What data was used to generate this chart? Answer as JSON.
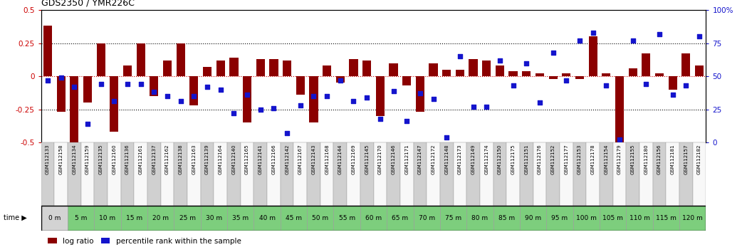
{
  "title": "GDS2350 / YMR226C",
  "samples": [
    "GSM112133",
    "GSM112158",
    "GSM112134",
    "GSM112159",
    "GSM112135",
    "GSM112160",
    "GSM112136",
    "GSM112161",
    "GSM112137",
    "GSM112162",
    "GSM112138",
    "GSM112163",
    "GSM112139",
    "GSM112164",
    "GSM112140",
    "GSM112165",
    "GSM112141",
    "GSM112166",
    "GSM112142",
    "GSM112167",
    "GSM112143",
    "GSM112168",
    "GSM112144",
    "GSM112169",
    "GSM112145",
    "GSM112170",
    "GSM112146",
    "GSM112171",
    "GSM112147",
    "GSM112172",
    "GSM112148",
    "GSM112173",
    "GSM112149",
    "GSM112174",
    "GSM112150",
    "GSM112175",
    "GSM112151",
    "GSM112176",
    "GSM112152",
    "GSM112177",
    "GSM112153",
    "GSM112178",
    "GSM112154",
    "GSM112179",
    "GSM112155",
    "GSM112180",
    "GSM112156",
    "GSM112181",
    "GSM112157",
    "GSM112182"
  ],
  "time_labels": [
    "0 m",
    "5 m",
    "10 m",
    "15 m",
    "20 m",
    "25 m",
    "30 m",
    "35 m",
    "40 m",
    "45 m",
    "50 m",
    "55 m",
    "60 m",
    "65 m",
    "70 m",
    "75 m",
    "80 m",
    "85 m",
    "90 m",
    "95 m",
    "100 m",
    "105 m",
    "110 m",
    "115 m",
    "120 m"
  ],
  "log_ratio": [
    0.38,
    -0.27,
    -0.52,
    -0.2,
    0.25,
    -0.42,
    0.08,
    0.25,
    -0.15,
    0.12,
    0.25,
    -0.22,
    0.07,
    0.12,
    0.14,
    -0.35,
    0.13,
    0.13,
    0.12,
    -0.14,
    -0.35,
    0.08,
    -0.05,
    0.13,
    0.12,
    -0.3,
    0.1,
    -0.07,
    -0.27,
    0.1,
    0.05,
    0.05,
    0.13,
    0.12,
    0.08,
    0.04,
    0.04,
    0.02,
    -0.02,
    0.02,
    -0.02,
    0.3,
    0.02,
    -0.52,
    0.06,
    0.17,
    0.02,
    -0.1,
    0.17,
    0.08
  ],
  "percentile": [
    0.47,
    0.49,
    0.42,
    0.14,
    0.44,
    0.31,
    0.44,
    0.44,
    0.38,
    0.35,
    0.31,
    0.35,
    0.42,
    0.4,
    0.22,
    0.36,
    0.25,
    0.26,
    0.07,
    0.28,
    0.35,
    0.35,
    0.47,
    0.31,
    0.34,
    0.18,
    0.39,
    0.16,
    0.37,
    0.33,
    0.04,
    0.65,
    0.27,
    0.27,
    0.62,
    0.43,
    0.6,
    0.3,
    0.68,
    0.47,
    0.77,
    0.83,
    0.43,
    0.02,
    0.77,
    0.44,
    0.82,
    0.36,
    0.43,
    0.8
  ],
  "bar_color": "#8B0000",
  "dot_color": "#1414cc",
  "ylim_left": [
    -0.5,
    0.5
  ],
  "ylim_right": [
    0.0,
    1.0
  ],
  "left_yticks": [
    -0.5,
    -0.25,
    0.0,
    0.25,
    0.5
  ],
  "left_yticklabels": [
    "-0.5",
    "-0.25",
    "0",
    "0.25",
    "0.5"
  ],
  "right_yticks": [
    0.0,
    0.25,
    0.5,
    0.75,
    1.0
  ],
  "right_yticklabels": [
    "0",
    "25",
    "50",
    "75",
    "100%"
  ],
  "hlines": [
    -0.25,
    0.0,
    0.25
  ],
  "hline_colors": [
    "black",
    "#cc0000",
    "black"
  ],
  "hline_styles": [
    "dotted",
    "dotted",
    "dotted"
  ]
}
